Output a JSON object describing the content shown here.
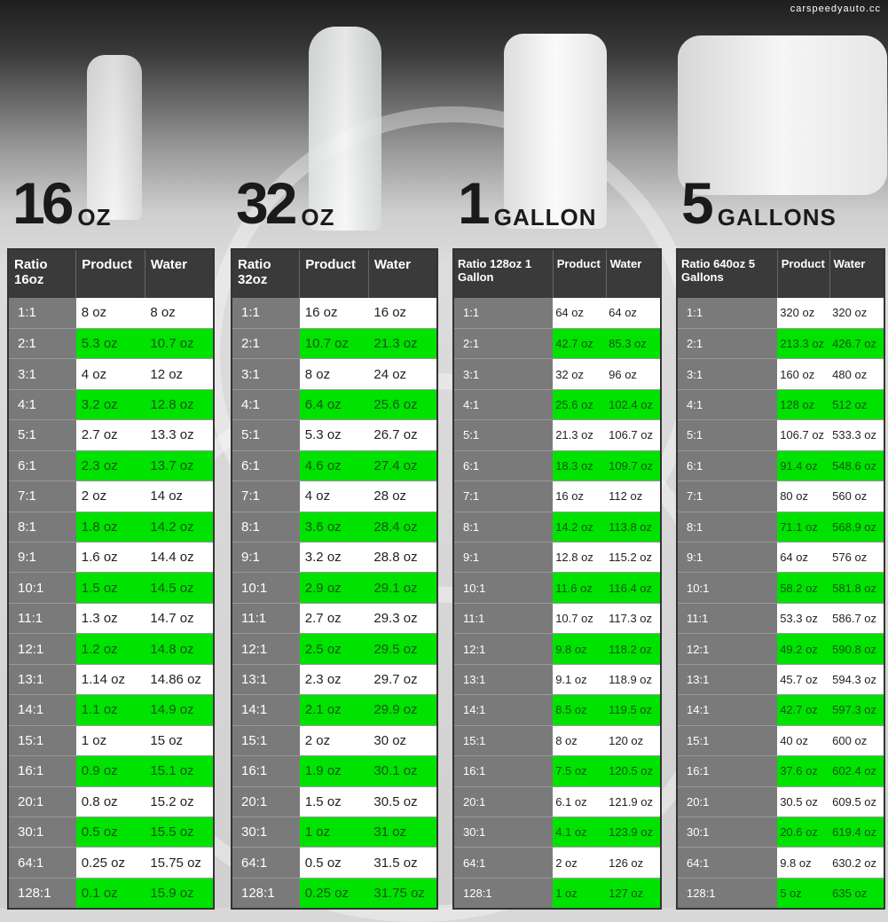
{
  "colors": {
    "green": "#00e200",
    "ratio_bg": "#7a7a7a",
    "header_bg": "#3a3a3a"
  },
  "watermark": "carspeedyauto.cc",
  "panels": [
    {
      "size": "16",
      "unit": "OZ",
      "container": "bottle-small-icon",
      "headers": [
        "Ratio 16oz",
        "Product",
        "Water"
      ],
      "rows": [
        [
          "1:1",
          "8 oz",
          "8 oz"
        ],
        [
          "2:1",
          "5.3 oz",
          "10.7 oz"
        ],
        [
          "3:1",
          "4 oz",
          "12 oz"
        ],
        [
          "4:1",
          "3.2 oz",
          "12.8 oz"
        ],
        [
          "5:1",
          "2.7 oz",
          "13.3 oz"
        ],
        [
          "6:1",
          "2.3 oz",
          "13.7 oz"
        ],
        [
          "7:1",
          "2 oz",
          "14 oz"
        ],
        [
          "8:1",
          "1.8 oz",
          "14.2 oz"
        ],
        [
          "9:1",
          "1.6 oz",
          "14.4 oz"
        ],
        [
          "10:1",
          "1.5 oz",
          "14.5 oz"
        ],
        [
          "11:1",
          "1.3 oz",
          "14.7 oz"
        ],
        [
          "12:1",
          "1.2 oz",
          "14.8 oz"
        ],
        [
          "13:1",
          "1.14 oz",
          "14.86 oz"
        ],
        [
          "14:1",
          "1.1 oz",
          "14.9 oz"
        ],
        [
          "15:1",
          "1 oz",
          "15 oz"
        ],
        [
          "16:1",
          "0.9 oz",
          "15.1 oz"
        ],
        [
          "20:1",
          "0.8 oz",
          "15.2 oz"
        ],
        [
          "30:1",
          "0.5 oz",
          "15.5 oz"
        ],
        [
          "64:1",
          "0.25 oz",
          "15.75 oz"
        ],
        [
          "128:1",
          "0.1 oz",
          "15.9 oz"
        ]
      ]
    },
    {
      "size": "32",
      "unit": "OZ",
      "container": "bottle-large-icon",
      "headers": [
        "Ratio 32oz",
        "Product",
        "Water"
      ],
      "rows": [
        [
          "1:1",
          "16 oz",
          "16 oz"
        ],
        [
          "2:1",
          "10.7 oz",
          "21.3 oz"
        ],
        [
          "3:1",
          "8 oz",
          "24 oz"
        ],
        [
          "4:1",
          "6.4 oz",
          "25.6 oz"
        ],
        [
          "5:1",
          "5.3 oz",
          "26.7 oz"
        ],
        [
          "6:1",
          "4.6 oz",
          "27.4 oz"
        ],
        [
          "7:1",
          "4 oz",
          "28 oz"
        ],
        [
          "8:1",
          "3.6 oz",
          "28.4 oz"
        ],
        [
          "9:1",
          "3.2 oz",
          "28.8 oz"
        ],
        [
          "10:1",
          "2.9 oz",
          "29.1 oz"
        ],
        [
          "11:1",
          "2.7 oz",
          "29.3 oz"
        ],
        [
          "12:1",
          "2.5 oz",
          "29.5 oz"
        ],
        [
          "13:1",
          "2.3 oz",
          "29.7 oz"
        ],
        [
          "14:1",
          "2.1 oz",
          "29.9 oz"
        ],
        [
          "15:1",
          "2 oz",
          "30 oz"
        ],
        [
          "16:1",
          "1.9 oz",
          "30.1 oz"
        ],
        [
          "20:1",
          "1.5 oz",
          "30.5 oz"
        ],
        [
          "30:1",
          "1 oz",
          "31 oz"
        ],
        [
          "64:1",
          "0.5 oz",
          "31.5 oz"
        ],
        [
          "128:1",
          "0.25 oz",
          "31.75 oz"
        ]
      ]
    },
    {
      "size": "1",
      "unit": "GALLON",
      "container": "jug-icon",
      "headers": [
        "Ratio 128oz 1 Gallon",
        "Product",
        "Water"
      ],
      "rows": [
        [
          "1:1",
          "64 oz",
          "64 oz"
        ],
        [
          "2:1",
          "42.7 oz",
          "85.3 oz"
        ],
        [
          "3:1",
          "32 oz",
          "96 oz"
        ],
        [
          "4:1",
          "25.6 oz",
          "102.4 oz"
        ],
        [
          "5:1",
          "21.3 oz",
          "106.7 oz"
        ],
        [
          "6:1",
          "18.3 oz",
          "109.7 oz"
        ],
        [
          "7:1",
          "16 oz",
          "112 oz"
        ],
        [
          "8:1",
          "14.2 oz",
          "113.8 oz"
        ],
        [
          "9:1",
          "12.8 oz",
          "115.2 oz"
        ],
        [
          "10:1",
          "11.6 oz",
          "116.4 oz"
        ],
        [
          "11:1",
          "10.7 oz",
          "117.3 oz"
        ],
        [
          "12:1",
          "9.8 oz",
          "118.2 oz"
        ],
        [
          "13:1",
          "9.1 oz",
          "118.9 oz"
        ],
        [
          "14:1",
          "8.5 oz",
          "119.5 oz"
        ],
        [
          "15:1",
          "8 oz",
          "120 oz"
        ],
        [
          "16:1",
          "7.5 oz",
          "120.5 oz"
        ],
        [
          "20:1",
          "6.1 oz",
          "121.9 oz"
        ],
        [
          "30:1",
          "4.1 oz",
          "123.9 oz"
        ],
        [
          "64:1",
          "2 oz",
          "126 oz"
        ],
        [
          "128:1",
          "1 oz",
          "127 oz"
        ]
      ]
    },
    {
      "size": "5",
      "unit": "GALLONS",
      "container": "cube-container-icon",
      "headers": [
        "Ratio 640oz 5 Gallons",
        "Product",
        "Water"
      ],
      "rows": [
        [
          "1:1",
          "320 oz",
          "320 oz"
        ],
        [
          "2:1",
          "213.3 oz",
          "426.7 oz"
        ],
        [
          "3:1",
          "160 oz",
          "480 oz"
        ],
        [
          "4:1",
          "128 oz",
          "512 oz"
        ],
        [
          "5:1",
          "106.7 oz",
          "533.3 oz"
        ],
        [
          "6:1",
          "91.4 oz",
          "548.6 oz"
        ],
        [
          "7:1",
          "80 oz",
          "560 oz"
        ],
        [
          "8:1",
          "71.1 oz",
          "568.9 oz"
        ],
        [
          "9:1",
          "64 oz",
          "576 oz"
        ],
        [
          "10:1",
          "58.2 oz",
          "581.8 oz"
        ],
        [
          "11:1",
          "53.3 oz",
          "586.7 oz"
        ],
        [
          "12:1",
          "49.2 oz",
          "590.8 oz"
        ],
        [
          "13:1",
          "45.7 oz",
          "594.3 oz"
        ],
        [
          "14:1",
          "42.7 oz",
          "597.3 oz"
        ],
        [
          "15:1",
          "40 oz",
          "600 oz"
        ],
        [
          "16:1",
          "37.6 oz",
          "602.4 oz"
        ],
        [
          "20:1",
          "30.5 oz",
          "609.5 oz"
        ],
        [
          "30:1",
          "20.6 oz",
          "619.4 oz"
        ],
        [
          "64:1",
          "9.8 oz",
          "630.2 oz"
        ],
        [
          "128:1",
          "5 oz",
          "635 oz"
        ]
      ]
    }
  ]
}
